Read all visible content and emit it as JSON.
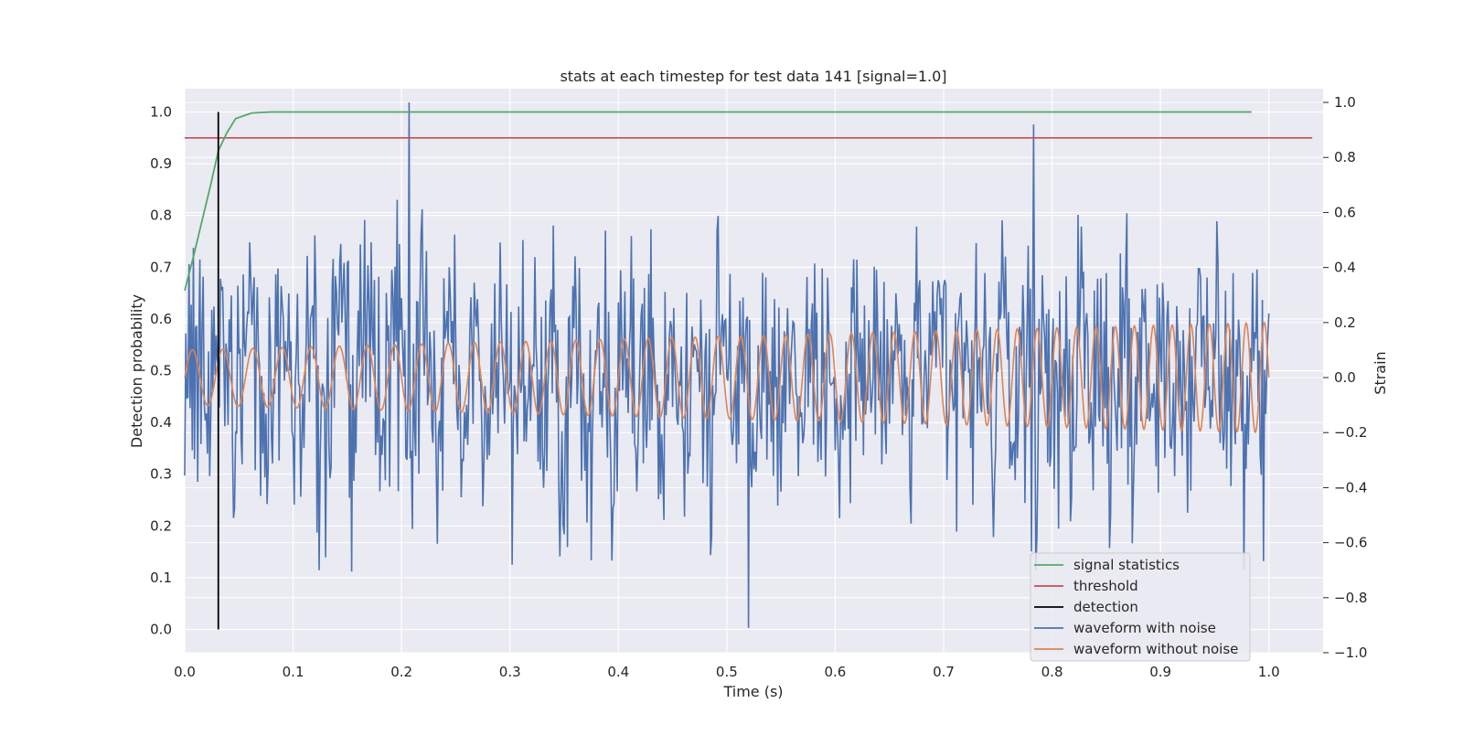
{
  "chart_data": {
    "type": "line",
    "title": "stats at each timestep for test data 141 [signal=1.0]",
    "xlabel": "Time (s)",
    "ylabel_left": "Detection probability",
    "ylabel_right": "Strain",
    "xlim": [
      0.0,
      1.05
    ],
    "ylim_left": [
      -0.045,
      1.045
    ],
    "ylim_right": [
      -1.0,
      1.05
    ],
    "x_ticks": [
      "0.0",
      "0.1",
      "0.2",
      "0.3",
      "0.4",
      "0.5",
      "0.6",
      "0.7",
      "0.8",
      "0.9",
      "1.0"
    ],
    "y_ticks_left": [
      "0.0",
      "0.1",
      "0.2",
      "0.3",
      "0.4",
      "0.5",
      "0.6",
      "0.7",
      "0.8",
      "0.9",
      "1.0"
    ],
    "y_ticks_right": [
      "−1.0",
      "−0.8",
      "−0.6",
      "−0.4",
      "−0.2",
      "0.0",
      "0.2",
      "0.4",
      "0.6",
      "0.8",
      "1.0"
    ],
    "grid": true,
    "legend_placement": "lower-right",
    "colors": {
      "signal_statistics": "#55a868",
      "threshold": "#c44e52",
      "detection": "#000000",
      "waveform_with_noise": "#4c72b0",
      "waveform_without_noise": "#dd8452",
      "background": "#eaeaf2",
      "grid": "#ffffff"
    },
    "series": [
      {
        "name": "signal statistics",
        "axis": "left",
        "x": [
          0.0,
          0.008,
          0.016,
          0.024,
          0.031,
          0.039,
          0.047,
          0.055,
          0.062,
          0.07,
          0.08,
          0.1,
          0.2,
          0.3,
          0.4,
          0.5,
          0.6,
          0.7,
          0.8,
          0.9,
          0.984
        ],
        "y": [
          0.655,
          0.72,
          0.79,
          0.86,
          0.925,
          0.96,
          0.987,
          0.993,
          0.998,
          0.999,
          1.0,
          1.0,
          1.0,
          1.0,
          1.0,
          1.0,
          1.0,
          1.0,
          1.0,
          1.0,
          1.0
        ]
      },
      {
        "name": "threshold",
        "axis": "left",
        "y_const": 0.95,
        "x_range": [
          0.0,
          1.04
        ]
      },
      {
        "name": "detection",
        "axis": "left",
        "x_const": 0.031,
        "y_range": [
          0.0,
          1.0
        ]
      },
      {
        "name": "waveform with noise",
        "axis": "right",
        "x_range": [
          0.0,
          1.0
        ],
        "amplitude": 0.2,
        "spikes": [
          {
            "x": 0.207,
            "y": 1.0
          },
          {
            "x": 0.783,
            "y": 0.92
          },
          {
            "x": 0.52,
            "y": -0.91
          },
          {
            "x": 0.785,
            "y": -0.7
          },
          {
            "x": 0.977,
            "y": -0.7
          },
          {
            "x": 0.302,
            "y": -0.68
          },
          {
            "x": 0.124,
            "y": -0.7
          },
          {
            "x": 0.21,
            "y": -0.55
          }
        ]
      },
      {
        "name": "waveform without noise",
        "axis": "right",
        "x_range": [
          0.0,
          1.0
        ],
        "amplitude_start": 0.1,
        "amplitude_end": 0.2,
        "frequency_start": 35,
        "frequency_end": 60
      }
    ]
  }
}
